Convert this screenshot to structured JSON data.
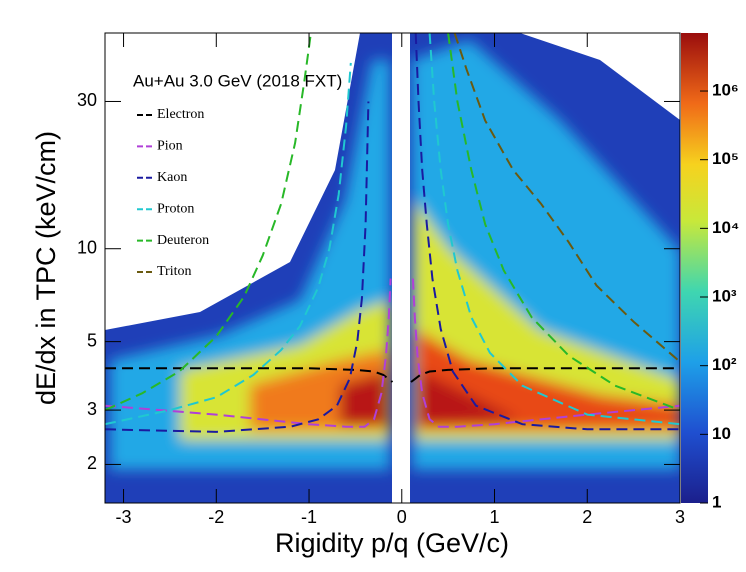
{
  "chart_data": {
    "type": "line",
    "annotation": "Au+Au 3.0 GeV (2018 FXT)",
    "xlabel": "Rigidity p/q (GeV/c)",
    "ylabel": "dE/dx in TPC (keV/cm)",
    "xlim": [
      -3.2,
      3
    ],
    "xticks": [
      -3,
      -2,
      -1,
      0,
      1,
      2,
      3
    ],
    "ylim": [
      1.5,
      50
    ],
    "ylog": true,
    "yticks": [
      2,
      3,
      5,
      10,
      30
    ],
    "zlim": [
      1,
      7000000
    ],
    "zlog": true,
    "zticks": [
      1,
      10,
      {
        "value": 100,
        "label": "10²"
      },
      {
        "value": 1000,
        "label": "10³"
      },
      {
        "value": 10000,
        "label": "10⁴"
      },
      {
        "value": 100000,
        "label": "10⁵"
      },
      {
        "value": 1000000,
        "label": "10⁶"
      }
    ],
    "series": [
      {
        "name": "Electron",
        "color": "#000000",
        "x": [
          -3.2,
          -1,
          -0.5,
          -0.3,
          -0.2,
          -0.15,
          -0.1,
          0,
          0.1,
          0.15,
          0.2,
          0.3,
          0.5,
          1,
          3
        ],
        "values": [
          4.1,
          4.1,
          4.05,
          4.0,
          3.9,
          3.8,
          3.7,
          null,
          3.7,
          3.8,
          3.9,
          4.0,
          4.05,
          4.1,
          4.1
        ]
      },
      {
        "name": "Pion",
        "color": "#b040d8",
        "x": [
          -3.2,
          -2,
          -1,
          -0.6,
          -0.4,
          -0.3,
          -0.22,
          -0.17,
          -0.14,
          -0.12,
          0,
          0.12,
          0.14,
          0.17,
          0.22,
          0.3,
          0.4,
          0.6,
          1,
          2,
          3
        ],
        "values": [
          3.1,
          2.9,
          2.7,
          2.65,
          2.65,
          2.8,
          3.4,
          4.5,
          6,
          8,
          null,
          8,
          6,
          4.5,
          3.4,
          2.8,
          2.65,
          2.65,
          2.7,
          2.9,
          3.1
        ]
      },
      {
        "name": "Kaon",
        "color": "#1a1aa0",
        "x": [
          -3.2,
          -2,
          -1.2,
          -0.9,
          -0.7,
          -0.56,
          -0.48,
          -0.43,
          -0.39,
          -0.36,
          0,
          0.15,
          0.18,
          0.22,
          0.27,
          0.33,
          0.42,
          0.55,
          0.8,
          1.3,
          2,
          3
        ],
        "values": [
          2.6,
          2.55,
          2.65,
          2.8,
          3.1,
          3.8,
          5,
          6.9,
          12,
          30,
          null,
          50,
          30,
          18,
          12,
          8,
          5.5,
          4,
          3.1,
          2.7,
          2.6,
          2.6
        ]
      },
      {
        "name": "Proton",
        "color": "#20c8d0",
        "x": [
          -3.2,
          -2.5,
          -2,
          -1.6,
          -1.3,
          -1.1,
          -0.9,
          -0.78,
          -0.68,
          -0.6,
          -0.55,
          0,
          0.3,
          0.35,
          0.42,
          0.5,
          0.6,
          0.75,
          0.95,
          1.3,
          2,
          3
        ],
        "values": [
          2.7,
          3.0,
          3.3,
          3.9,
          4.7,
          5.6,
          7.5,
          10,
          15,
          25,
          40,
          null,
          50,
          30,
          18,
          12,
          8.5,
          6,
          4.6,
          3.6,
          2.9,
          2.7
        ]
      },
      {
        "name": "Deuteron",
        "color": "#28b828",
        "x": [
          -3.2,
          -2.8,
          -2.4,
          -2,
          -1.7,
          -1.5,
          -1.3,
          -1.15,
          -1.05,
          -0.98,
          0,
          0.5,
          0.6,
          0.75,
          0.9,
          1.1,
          1.4,
          1.8,
          2.3,
          3
        ],
        "values": [
          3.0,
          3.4,
          4.0,
          5.2,
          7,
          9.5,
          14,
          22,
          35,
          50,
          null,
          50,
          30,
          18,
          12,
          8.5,
          6,
          4.5,
          3.6,
          3.0
        ]
      },
      {
        "name": "Triton",
        "color": "#6a5a10",
        "x": [
          0.57,
          0.7,
          0.9,
          1.2,
          1.5,
          1.8,
          2.1,
          2.5,
          3
        ],
        "values": [
          50,
          38,
          26,
          18,
          14,
          10.5,
          7.6,
          5.8,
          4.3
        ]
      }
    ]
  }
}
